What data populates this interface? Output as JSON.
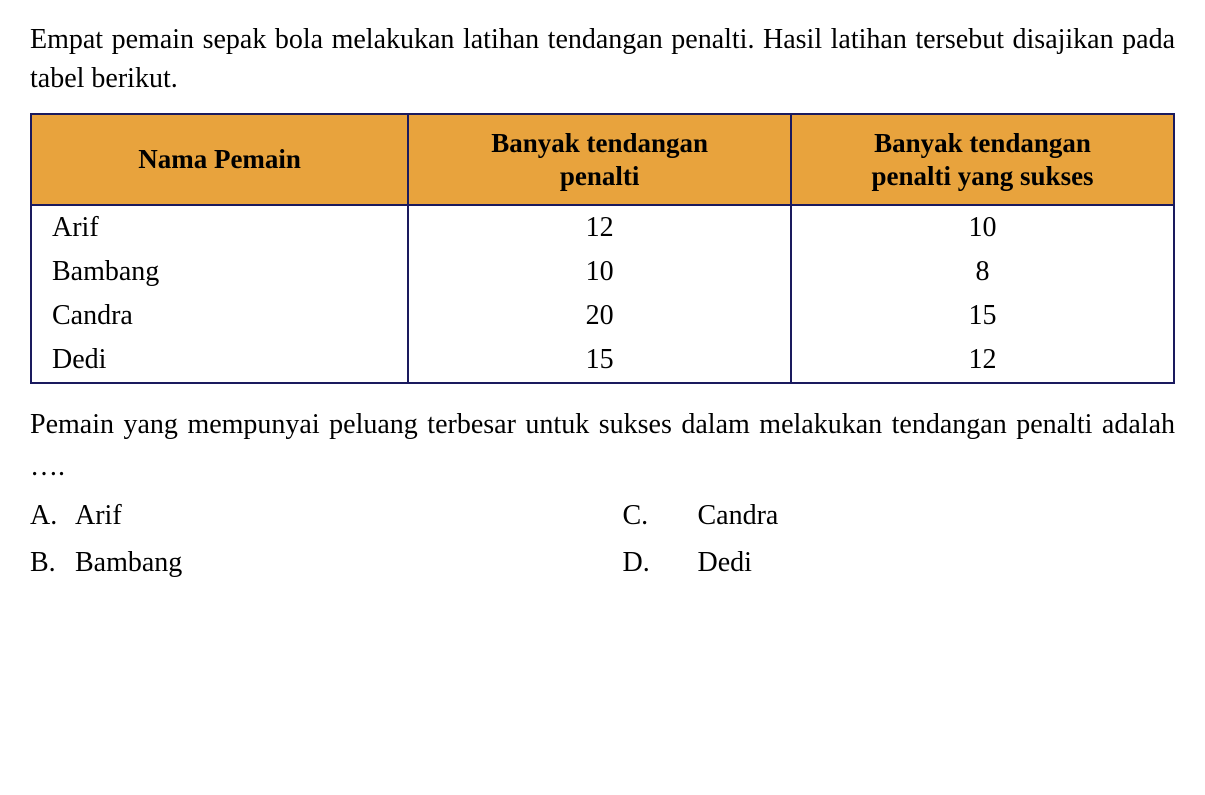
{
  "question": {
    "intro_text": "Empat pemain sepak bola melakukan latihan tendangan penalti. Hasil latihan tersebut disajikan pada tabel berikut.",
    "prompt_text": "Pemain yang mempunyai peluang terbesar untuk sukses dalam melakukan tendangan penalti  adalah …."
  },
  "table": {
    "headers": {
      "col1": "Nama Pemain",
      "col2_line1": "Banyak tendangan",
      "col2_line2": "penalti",
      "col3_line1": "Banyak tendangan",
      "col3_line2": "penalti yang sukses"
    },
    "rows": [
      {
        "name": "Arif",
        "attempts": "12",
        "success": "10"
      },
      {
        "name": "Bambang",
        "attempts": "10",
        "success": "8"
      },
      {
        "name": "Candra",
        "attempts": "20",
        "success": "15"
      },
      {
        "name": "Dedi",
        "attempts": "15",
        "success": "12"
      }
    ],
    "header_bg_color": "#e8a33d",
    "border_color": "#1a1a5e"
  },
  "options": {
    "a": {
      "letter": "A.",
      "text": "Arif"
    },
    "b": {
      "letter": "B.",
      "text": "Bambang"
    },
    "c": {
      "letter": "C.",
      "text": "Candra"
    },
    "d": {
      "letter": "D.",
      "text": "Dedi"
    }
  }
}
